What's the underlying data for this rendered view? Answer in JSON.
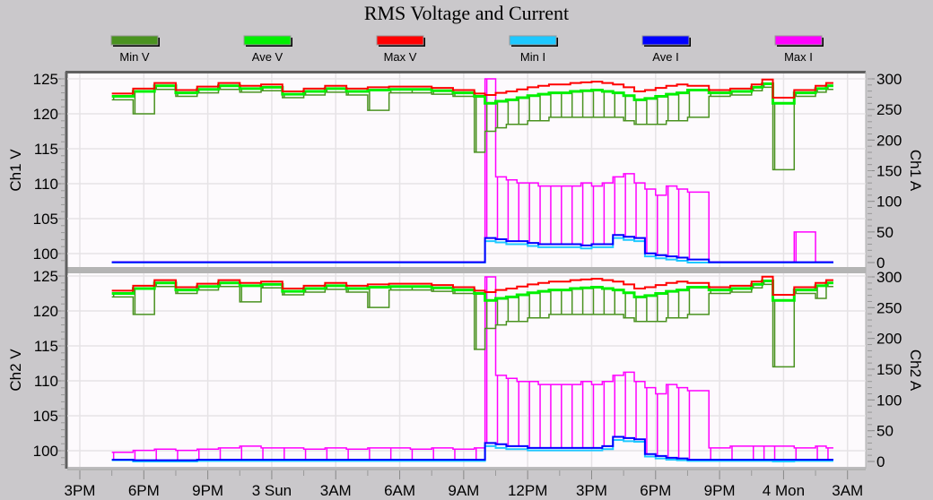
{
  "chart_data": [
    {
      "type": "line",
      "title": "RMS Voltage and Current",
      "panel": "top",
      "ylabel": "Ch1 V",
      "y2label": "Ch1 A",
      "ylim": [
        97.7,
        125.8
      ],
      "y2lim": [
        -7,
        308
      ],
      "yticks": [
        "125",
        "120",
        "115",
        "110",
        "105",
        "100"
      ],
      "y2ticks": [
        "300",
        "250",
        "200",
        "150",
        "100",
        "50",
        "0"
      ],
      "grid": true,
      "x": [
        "2 16:30",
        "2 17:30",
        "2 18:30",
        "2 19:30",
        "2 20:30",
        "2 21:30",
        "2 22:30",
        "2 23:30",
        "3 00:30",
        "3 01:30",
        "3 02:30",
        "3 03:30",
        "3 04:30",
        "3 05:30",
        "3 06:30",
        "3 07:30",
        "3 08:30",
        "3 09:30",
        "3 10:00",
        "3 10:30",
        "3 11:00",
        "3 11:30",
        "3 12:00",
        "3 12:30",
        "3 13:00",
        "3 13:30",
        "3 14:00",
        "3 14:30",
        "3 15:00",
        "3 15:30",
        "3 16:00",
        "3 16:30",
        "3 17:00",
        "3 17:30",
        "3 18:00",
        "3 18:30",
        "3 19:00",
        "3 19:30",
        "3 20:30",
        "3 21:30",
        "3 22:30",
        "3 23:00",
        "3 23:30",
        "4 00:30",
        "4 01:30",
        "4 02:00"
      ],
      "series": [
        {
          "name": "Min V",
          "axis": "left",
          "values": [
            122,
            120,
            123.5,
            122.5,
            123,
            123.5,
            123.1,
            123.3,
            122.3,
            122.7,
            123.1,
            122.7,
            120.5,
            123,
            123,
            122.8,
            122.5,
            114.5,
            117.5,
            118,
            118.5,
            118.5,
            119,
            119,
            119.5,
            119.5,
            119.5,
            119.5,
            119.5,
            119.5,
            119.5,
            119,
            118.5,
            118.5,
            118.5,
            119,
            119,
            119.5,
            122.5,
            122.7,
            123.3,
            123.8,
            112,
            122.5,
            123.1,
            123.5
          ]
        },
        {
          "name": "Ave V",
          "axis": "left",
          "values": [
            122.5,
            123.2,
            124,
            123,
            123.5,
            124,
            123.6,
            123.8,
            122.8,
            123.2,
            123.6,
            123.2,
            123.4,
            123.5,
            123.5,
            123.3,
            123,
            122.5,
            121.5,
            121.8,
            122,
            122.3,
            122.6,
            122.8,
            123,
            123,
            123.2,
            123.3,
            123.4,
            123.2,
            123,
            122.6,
            122,
            122.2,
            122.5,
            122.8,
            123,
            123.4,
            123,
            123.2,
            123.8,
            124.3,
            121.5,
            123,
            123.6,
            124
          ]
        },
        {
          "name": "Max V",
          "axis": "left",
          "values": [
            122.9,
            123.6,
            124.4,
            123.4,
            123.9,
            124.4,
            124,
            124.2,
            123.2,
            123.6,
            124,
            123.6,
            123.8,
            123.9,
            123.9,
            123.7,
            123.4,
            122.9,
            122.7,
            123,
            123.2,
            123.5,
            123.8,
            124,
            124.2,
            124.2,
            124.4,
            124.5,
            124.6,
            124.4,
            124.2,
            123.8,
            123.2,
            123.4,
            123.7,
            124,
            124.2,
            124,
            123.4,
            123.6,
            124.2,
            124.9,
            122.3,
            123.4,
            124,
            124.4
          ]
        },
        {
          "name": "Min I",
          "axis": "right",
          "values": [
            0,
            0,
            0,
            0,
            0,
            0,
            0,
            0,
            0,
            0,
            0,
            0,
            0,
            0,
            0,
            0,
            0,
            0,
            35,
            33,
            30,
            30,
            27,
            25,
            25,
            25,
            25,
            23,
            25,
            25,
            40,
            37,
            35,
            10,
            7,
            5,
            3,
            0,
            0,
            0,
            0,
            0,
            0,
            0,
            0,
            0
          ]
        },
        {
          "name": "Ave I",
          "axis": "right",
          "values": [
            0.5,
            0.5,
            0.5,
            0.5,
            0.5,
            0.5,
            0.5,
            0.5,
            0.5,
            0.5,
            0.5,
            0.5,
            0.5,
            0.5,
            0.5,
            0.5,
            0.5,
            0.5,
            40,
            38,
            35,
            35,
            32,
            30,
            30,
            30,
            30,
            28,
            30,
            30,
            45,
            42,
            40,
            15,
            12,
            10,
            8,
            5,
            0.5,
            0.5,
            0.5,
            0.5,
            0.5,
            0.5,
            0.5,
            0.5
          ]
        },
        {
          "name": "Max I",
          "axis": "right",
          "values": [
            1,
            1,
            1,
            1,
            1,
            1,
            1,
            1,
            1,
            1,
            1,
            1,
            1,
            1,
            1,
            1,
            1,
            1,
            300,
            140,
            135,
            130,
            130,
            125,
            125,
            125,
            125,
            130,
            125,
            130,
            140,
            145,
            130,
            120,
            110,
            125,
            120,
            115,
            1,
            1,
            1,
            1,
            1,
            50,
            1,
            1
          ]
        }
      ]
    },
    {
      "type": "line",
      "panel": "bottom",
      "ylabel": "Ch2 V",
      "y2label": "Ch2 A",
      "ylim": [
        97.7,
        125.5
      ],
      "y2lim": [
        -9,
        305
      ],
      "yticks": [
        "125",
        "120",
        "115",
        "110",
        "105",
        "100"
      ],
      "y2ticks": [
        "300",
        "250",
        "200",
        "150",
        "100",
        "50",
        "0"
      ],
      "grid": true,
      "xticks": [
        "3PM",
        "6PM",
        "9PM",
        "3 Sun",
        "3AM",
        "6AM",
        "9AM",
        "12PM",
        "3PM",
        "6PM",
        "9PM",
        "4 Mon",
        "3AM"
      ],
      "x": [
        "2 16:30",
        "2 17:30",
        "2 18:30",
        "2 19:30",
        "2 20:30",
        "2 21:30",
        "2 22:30",
        "2 23:30",
        "3 00:30",
        "3 01:30",
        "3 02:30",
        "3 03:30",
        "3 04:30",
        "3 05:30",
        "3 06:30",
        "3 07:30",
        "3 08:30",
        "3 09:30",
        "3 10:00",
        "3 10:30",
        "3 11:00",
        "3 11:30",
        "3 12:00",
        "3 12:30",
        "3 13:00",
        "3 13:30",
        "3 14:00",
        "3 14:30",
        "3 15:00",
        "3 15:30",
        "3 16:00",
        "3 16:30",
        "3 17:00",
        "3 17:30",
        "3 18:00",
        "3 18:30",
        "3 19:00",
        "3 19:30",
        "3 20:30",
        "3 21:30",
        "3 22:30",
        "3 23:00",
        "3 23:30",
        "4 00:30",
        "4 01:30",
        "4 02:00"
      ],
      "series": [
        {
          "name": "Min V",
          "axis": "left",
          "values": [
            122,
            119.5,
            123.5,
            122.5,
            123,
            123.5,
            121.3,
            123.3,
            122.3,
            122.7,
            123.1,
            122.7,
            120.5,
            123,
            123,
            122.8,
            122.5,
            114.5,
            117.5,
            118,
            118.5,
            118.5,
            119,
            119,
            119.5,
            119.5,
            119.5,
            119.5,
            119.5,
            119.5,
            119.5,
            119,
            118.5,
            118.5,
            118.5,
            119,
            119,
            119.5,
            122.5,
            122.7,
            123.3,
            123.8,
            112,
            122.5,
            121.8,
            123.5
          ]
        },
        {
          "name": "Ave V",
          "axis": "left",
          "values": [
            122.5,
            123.2,
            124,
            123,
            123.5,
            124,
            123.6,
            123.8,
            122.8,
            123.2,
            123.6,
            123.2,
            123.4,
            123.5,
            123.5,
            123.3,
            123,
            122.5,
            121.5,
            121.8,
            122,
            122.3,
            122.6,
            122.8,
            123,
            123,
            123.2,
            123.3,
            123.4,
            123.2,
            123,
            122.6,
            122,
            122.2,
            122.5,
            122.8,
            123,
            123.4,
            123,
            123.2,
            123.8,
            124.3,
            121.5,
            123,
            123.6,
            124
          ]
        },
        {
          "name": "Max V",
          "axis": "left",
          "values": [
            122.9,
            123.6,
            124.4,
            123.4,
            123.9,
            124.4,
            124,
            124.2,
            123.2,
            123.6,
            124,
            123.6,
            123.8,
            123.9,
            123.9,
            123.7,
            123.4,
            122.9,
            122.7,
            123,
            123.2,
            123.5,
            123.8,
            124,
            124.2,
            124.2,
            124.4,
            124.5,
            124.6,
            124.4,
            124.2,
            123.8,
            123.2,
            123.4,
            123.7,
            124,
            124.2,
            124,
            123.4,
            123.6,
            124.2,
            124.9,
            122.3,
            123.4,
            124,
            124.4
          ]
        },
        {
          "name": "Min I",
          "axis": "right",
          "values": [
            2,
            0,
            0,
            0,
            1,
            1,
            1,
            1,
            1,
            1,
            1,
            1,
            1,
            1,
            1,
            1,
            1,
            1,
            25,
            22,
            20,
            20,
            18,
            18,
            18,
            18,
            18,
            18,
            18,
            20,
            35,
            33,
            32,
            8,
            5,
            3,
            2,
            1,
            1,
            1,
            1,
            1,
            0,
            1,
            1,
            1
          ]
        },
        {
          "name": "Ave I",
          "axis": "right",
          "values": [
            3,
            2,
            2,
            2,
            3,
            3,
            3,
            3,
            3,
            3,
            3,
            3,
            3,
            3,
            3,
            3,
            3,
            3,
            30,
            28,
            25,
            25,
            22,
            22,
            22,
            22,
            22,
            22,
            22,
            25,
            40,
            38,
            36,
            12,
            9,
            6,
            5,
            3,
            3,
            3,
            3,
            3,
            3,
            3,
            3,
            3
          ]
        },
        {
          "name": "Max I",
          "axis": "right",
          "values": [
            15,
            18,
            20,
            18,
            20,
            22,
            25,
            22,
            22,
            20,
            22,
            20,
            22,
            22,
            20,
            22,
            20,
            22,
            300,
            140,
            135,
            130,
            130,
            125,
            125,
            125,
            125,
            130,
            125,
            130,
            140,
            145,
            130,
            120,
            110,
            125,
            120,
            115,
            22,
            25,
            25,
            25,
            25,
            22,
            25,
            22
          ]
        }
      ]
    }
  ],
  "legend": [
    {
      "label": "Min V",
      "color": "#4a9220"
    },
    {
      "label": "Ave V",
      "color": "#00f000"
    },
    {
      "label": "Max V",
      "color": "#ff0000"
    },
    {
      "label": "Min I",
      "color": "#1ec8ff"
    },
    {
      "label": "Ave I",
      "color": "#0000ff"
    },
    {
      "label": "Max I",
      "color": "#ff00ff"
    }
  ]
}
